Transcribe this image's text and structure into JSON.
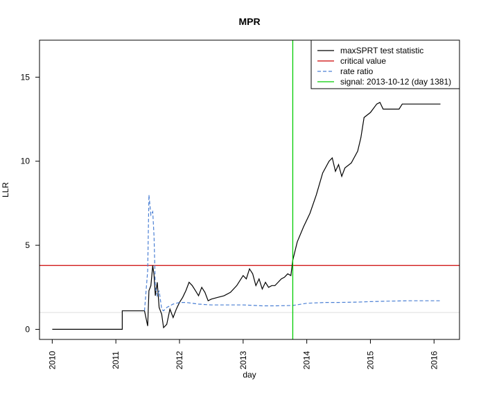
{
  "chart_data": {
    "type": "line",
    "title": "MPR",
    "xlabel": "day",
    "ylabel": "LLR",
    "xlim": [
      2009.8,
      2016.4
    ],
    "ylim": [
      -0.6,
      17.2
    ],
    "x_ticks": [
      2010,
      2011,
      2012,
      2013,
      2014,
      2015,
      2016
    ],
    "x_tick_labels": [
      "2010",
      "2011",
      "2012",
      "2013",
      "2014",
      "2015",
      "2016"
    ],
    "y_ticks": [
      0,
      5,
      10,
      15
    ],
    "y_tick_labels": [
      "0",
      "5",
      "10",
      "15"
    ],
    "grid": false,
    "legend_position": "top-right",
    "colors": {
      "test_statistic": "#000000",
      "critical_value": "#cc0000",
      "rate_ratio": "#4a7fd4",
      "signal": "#00cc00",
      "reference": "#dddddd"
    },
    "legend": [
      {
        "label": "maxSPRT test statistic",
        "style": "solid",
        "color": "#000000"
      },
      {
        "label": "critical value",
        "style": "solid",
        "color": "#cc0000"
      },
      {
        "label": "rate ratio",
        "style": "dashed",
        "color": "#4a7fd4"
      },
      {
        "label": "signal: 2013-10-12 (day 1381)",
        "style": "solid",
        "color": "#00cc00"
      }
    ],
    "critical_value": 3.8,
    "reference_line": 1.0,
    "signal_x": 2013.78,
    "series": [
      {
        "name": "maxSPRT test statistic",
        "x": [
          2010.0,
          2011.1,
          2011.1,
          2011.45,
          2011.5,
          2011.52,
          2011.55,
          2011.58,
          2011.6,
          2011.62,
          2011.65,
          2011.68,
          2011.72,
          2011.75,
          2011.8,
          2011.85,
          2011.9,
          2011.95,
          2012.0,
          2012.05,
          2012.1,
          2012.15,
          2012.2,
          2012.25,
          2012.3,
          2012.35,
          2012.4,
          2012.45,
          2012.5,
          2012.6,
          2012.7,
          2012.8,
          2012.9,
          2013.0,
          2013.05,
          2013.1,
          2013.15,
          2013.2,
          2013.25,
          2013.3,
          2013.35,
          2013.4,
          2013.45,
          2013.5,
          2013.55,
          2013.6,
          2013.65,
          2013.7,
          2013.75,
          2013.78,
          2013.85,
          2013.95,
          2014.05,
          2014.15,
          2014.25,
          2014.35,
          2014.4,
          2014.45,
          2014.5,
          2014.55,
          2014.6,
          2014.7,
          2014.8,
          2014.85,
          2014.9,
          2015.0,
          2015.1,
          2015.15,
          2015.2,
          2015.25,
          2015.3,
          2015.35,
          2015.4,
          2015.45,
          2015.5,
          2015.55,
          2015.6,
          2015.7,
          2015.8,
          2015.9,
          2016.0,
          2016.1
        ],
        "values": [
          0.0,
          0.0,
          1.1,
          1.1,
          0.2,
          2.3,
          2.6,
          3.8,
          3.2,
          2.0,
          2.8,
          1.3,
          0.9,
          0.1,
          0.3,
          1.2,
          0.7,
          1.2,
          1.6,
          1.9,
          2.3,
          2.8,
          2.6,
          2.3,
          2.0,
          2.5,
          2.2,
          1.7,
          1.8,
          1.9,
          2.0,
          2.2,
          2.6,
          3.2,
          3.0,
          3.6,
          3.3,
          2.6,
          3.0,
          2.4,
          2.8,
          2.5,
          2.6,
          2.6,
          2.8,
          3.0,
          3.1,
          3.3,
          3.2,
          4.1,
          5.2,
          6.1,
          6.9,
          8.0,
          9.3,
          10.0,
          10.2,
          9.4,
          9.8,
          9.1,
          9.6,
          9.9,
          10.6,
          11.4,
          12.6,
          12.9,
          13.4,
          13.5,
          13.1,
          13.1,
          13.1,
          13.1,
          13.1,
          13.1,
          13.4,
          13.4,
          13.4,
          13.4,
          13.4,
          13.4,
          13.4,
          13.4
        ]
      },
      {
        "name": "rate ratio",
        "x": [
          2011.45,
          2011.5,
          2011.52,
          2011.55,
          2011.58,
          2011.6,
          2011.62,
          2011.65,
          2011.68,
          2011.72,
          2011.75,
          2011.8,
          2011.9,
          2012.0,
          2012.1,
          2012.3,
          2012.5,
          2012.8,
          2013.0,
          2013.3,
          2013.5,
          2013.78,
          2014.0,
          2014.3,
          2014.5,
          2014.8,
          2015.0,
          2015.3,
          2015.6,
          2016.1
        ],
        "values": [
          1.1,
          3.5,
          8.0,
          6.8,
          7.0,
          5.5,
          2.5,
          2.0,
          2.3,
          1.2,
          1.1,
          1.3,
          1.5,
          1.6,
          1.6,
          1.5,
          1.45,
          1.45,
          1.45,
          1.4,
          1.4,
          1.42,
          1.55,
          1.6,
          1.6,
          1.62,
          1.65,
          1.68,
          1.7,
          1.7
        ]
      }
    ]
  }
}
